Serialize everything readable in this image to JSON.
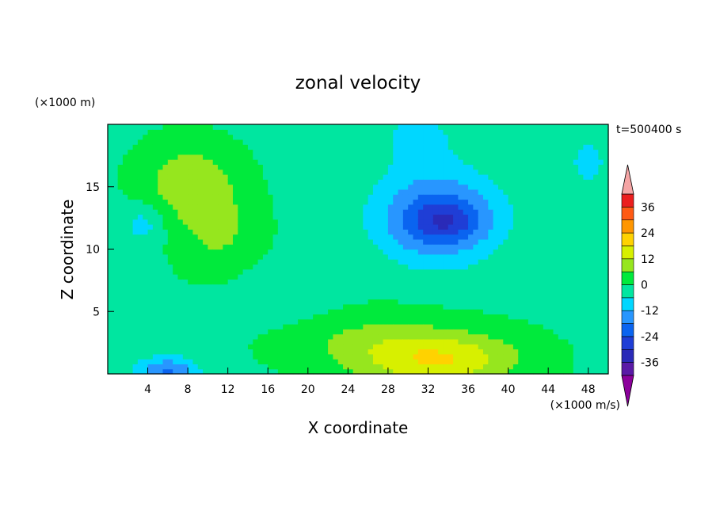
{
  "chart_data": {
    "type": "heatmap",
    "title": "zonal velocity",
    "xlabel": "X coordinate",
    "ylabel": "Z coordinate",
    "x_unit": "(×1000 m/s)",
    "y_unit": "(×1000 m)",
    "time_label": "t=500400 s",
    "xlim": [
      0,
      50
    ],
    "ylim": [
      0,
      20
    ],
    "x_ticks": [
      4,
      8,
      12,
      16,
      20,
      24,
      28,
      32,
      36,
      40,
      44,
      48
    ],
    "y_ticks": [
      5,
      10,
      15
    ],
    "colorbar": {
      "levels": [
        -42,
        -36,
        -30,
        -24,
        -18,
        -12,
        -6,
        0,
        6,
        12,
        18,
        24,
        30,
        36,
        42
      ],
      "labels": [
        36,
        24,
        12,
        0,
        -12,
        -24,
        -36
      ],
      "colors": [
        "#8b009b",
        "#5a1aa6",
        "#2a2ab8",
        "#1f3ed6",
        "#0a64f0",
        "#2896ff",
        "#00d7ff",
        "#00e6a0",
        "#00ea3c",
        "#96e61e",
        "#d7f000",
        "#ffd200",
        "#ff9600",
        "#ff5a14",
        "#eb1e1e",
        "#f5a5a5"
      ],
      "extend": "both"
    },
    "field_centers": [
      {
        "x": 33.0,
        "z": 12.5,
        "sx": 6.0,
        "sz": 3.4,
        "a": -23
      },
      {
        "x": 34.0,
        "z": 12.2,
        "sx": 3.2,
        "sz": 1.4,
        "a": -8
      },
      {
        "x": 31.0,
        "z": 19.0,
        "sx": 5.0,
        "sz": 3.0,
        "a": -6
      },
      {
        "x": 8.0,
        "z": 15.5,
        "sx": 4.5,
        "sz": 3.0,
        "a": 11
      },
      {
        "x": 11.0,
        "z": 11.5,
        "sx": 4.0,
        "sz": 3.5,
        "a": 8
      },
      {
        "x": 3.5,
        "z": 12.0,
        "sx": 2.0,
        "sz": 1.5,
        "a": -8
      },
      {
        "x": 33.0,
        "z": 1.2,
        "sx": 8.0,
        "sz": 2.3,
        "a": 19
      },
      {
        "x": 24.0,
        "z": 3.0,
        "sx": 8.0,
        "sz": 2.5,
        "a": 6
      },
      {
        "x": 6.0,
        "z": 0.2,
        "sx": 3.0,
        "sz": 1.2,
        "a": -18
      },
      {
        "x": 18.0,
        "z": 6.0,
        "sx": 6.0,
        "sz": 2.5,
        "a": -4
      },
      {
        "x": 48.0,
        "z": 17.0,
        "sx": 3.0,
        "sz": 3.0,
        "a": -6
      },
      {
        "x": 1.0,
        "z": 5.0,
        "sx": 2.5,
        "sz": 3.0,
        "a": -5
      }
    ],
    "field_gradient": {
      "x": 0.35,
      "z": 0.18,
      "offset": -1
    }
  }
}
